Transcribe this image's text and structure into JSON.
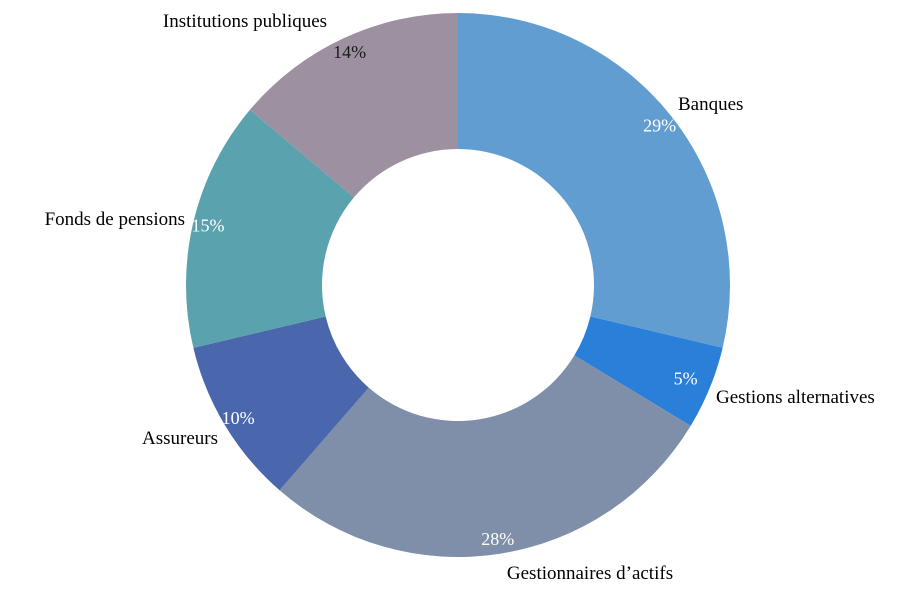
{
  "chart_data": {
    "type": "pie",
    "donut": true,
    "slices": [
      {
        "label": "Banques",
        "value": 29,
        "value_label": "29%",
        "color": "#629DD1",
        "text_color": "#ffffff"
      },
      {
        "label": "Gestions alternatives",
        "value": 5,
        "value_label": "5%",
        "color": "#2A80D8",
        "text_color": "#ffffff"
      },
      {
        "label": "Gestionnaires d’actifs",
        "value": 28,
        "value_label": "28%",
        "color": "#7F8FA9",
        "text_color": "#ffffff"
      },
      {
        "label": "Assureurs",
        "value": 10,
        "value_label": "10%",
        "color": "#4A66AC",
        "text_color": "#ffffff"
      },
      {
        "label": "Fonds de pensions",
        "value": 15,
        "value_label": "15%",
        "color": "#5AA2AE",
        "text_color": "#ffffff"
      },
      {
        "label": "Institutions publiques",
        "value": 14,
        "value_label": "14%",
        "color": "#9D90A0",
        "text_color": "#1a1a1a"
      }
    ]
  }
}
